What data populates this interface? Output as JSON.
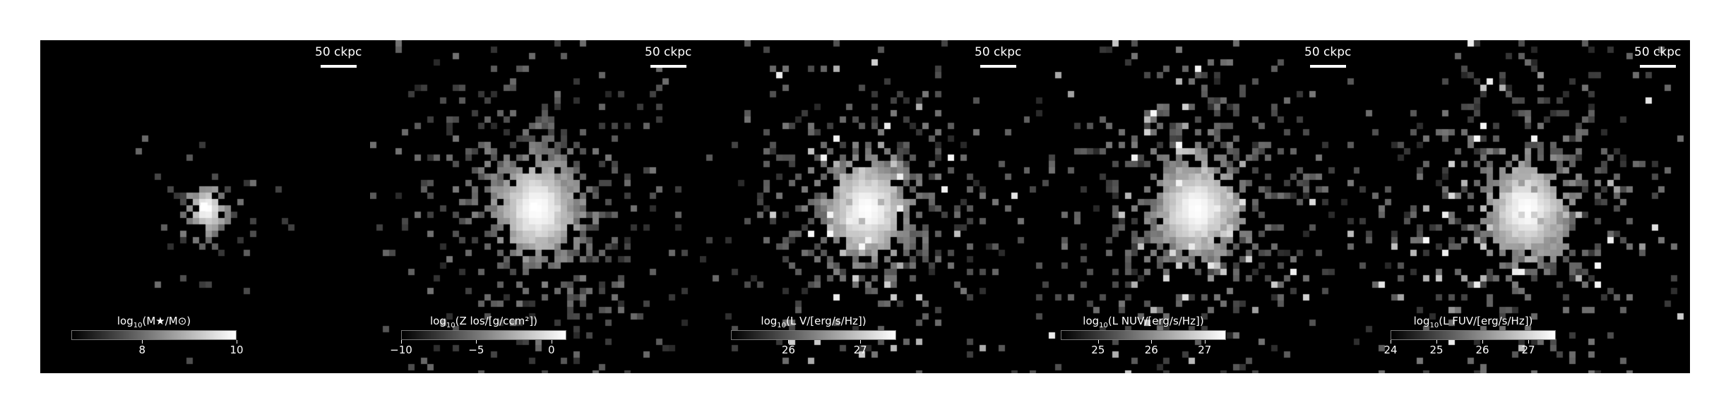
{
  "figure": {
    "panels": [
      {
        "name": "stellar-mass",
        "scalebar": "50 ckpc",
        "colorbar": {
          "prefix": "log",
          "sub": "10",
          "label": "(M★/M⊙)",
          "range": [
            6.5,
            10
          ],
          "ticks": [
            "8",
            "10"
          ],
          "tick_values": [
            8,
            10
          ]
        },
        "spread": 0.45,
        "density": 0.25,
        "seed": 11
      },
      {
        "name": "metallicity",
        "scalebar": "50 ckpc",
        "colorbar": {
          "prefix": "log",
          "sub": "10",
          "label": "(Z los/[g/ccm²])",
          "range": [
            -10,
            1
          ],
          "ticks": [
            "−10",
            "−5",
            "0"
          ],
          "tick_values": [
            -10,
            -5,
            0
          ]
        },
        "spread": 1.0,
        "density": 0.55,
        "seed": 23
      },
      {
        "name": "v-band-luminosity",
        "scalebar": "50 ckpc",
        "colorbar": {
          "prefix": "log",
          "sub": "10",
          "label": "(L V/[erg/s/Hz])",
          "range": [
            25.2,
            27.5
          ],
          "ticks": [
            "26",
            "27"
          ],
          "tick_values": [
            26,
            27
          ]
        },
        "spread": 1.0,
        "density": 0.5,
        "seed": 37
      },
      {
        "name": "nuv-luminosity",
        "scalebar": "50 ckpc",
        "colorbar": {
          "prefix": "log",
          "sub": "10",
          "label": "(L NUV/[erg/s/Hz])",
          "range": [
            24.3,
            27.4
          ],
          "ticks": [
            "25",
            "26",
            "27"
          ],
          "tick_values": [
            25,
            26,
            27
          ]
        },
        "spread": 1.0,
        "density": 0.55,
        "seed": 53
      },
      {
        "name": "fuv-luminosity",
        "scalebar": "50 ckpc",
        "colorbar": {
          "prefix": "log",
          "sub": "10",
          "label": "(L FUV/[erg/s/Hz])",
          "range": [
            24,
            27.6
          ],
          "ticks": [
            "24",
            "25",
            "26",
            "27"
          ],
          "tick_values": [
            24,
            25,
            26,
            27
          ]
        },
        "spread": 1.0,
        "density": 0.55,
        "seed": 71
      }
    ]
  }
}
